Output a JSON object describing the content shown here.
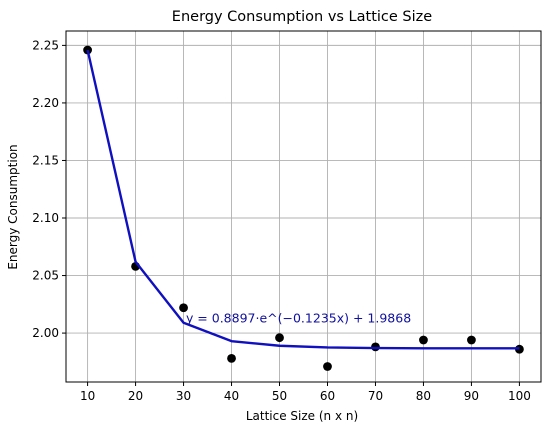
{
  "chart_data": {
    "type": "scatter",
    "title": "Energy Consumption vs Lattice Size",
    "xlabel": "Lattice Size (n x n)",
    "ylabel": "Energy Consumption",
    "xlim": [
      5.5,
      104.5
    ],
    "ylim": [
      1.9575,
      2.2625
    ],
    "grid": true,
    "x_ticks": [
      10,
      20,
      30,
      40,
      50,
      60,
      70,
      80,
      90,
      100
    ],
    "x_tick_labels": [
      "10",
      "20",
      "30",
      "40",
      "50",
      "60",
      "70",
      "80",
      "90",
      "100"
    ],
    "y_ticks": [
      2.0,
      2.05,
      2.1,
      2.15,
      2.2,
      2.25
    ],
    "y_tick_labels": [
      "2.00",
      "2.05",
      "2.10",
      "2.15",
      "2.20",
      "2.25"
    ],
    "series": [
      {
        "kind": "scatter",
        "color": "#000000",
        "x": [
          10,
          20,
          30,
          40,
          50,
          60,
          70,
          80,
          90,
          100
        ],
        "y": [
          2.246,
          2.058,
          2.022,
          1.978,
          1.996,
          1.971,
          1.988,
          1.994,
          1.994,
          1.986
        ]
      },
      {
        "kind": "line",
        "color": "#1010c0",
        "x": [
          10,
          20,
          30,
          40,
          50,
          60,
          70,
          80,
          90,
          100
        ],
        "y": [
          2.246,
          2.062,
          2.009,
          1.993,
          1.989,
          1.9875,
          1.987,
          1.9868,
          1.9868,
          1.9868
        ]
      }
    ],
    "annotations": [
      {
        "text": "y = 0.8897·e^(−0.1235x) + 1.9868",
        "x": 30.5,
        "y": 2.0125,
        "color": "#1010a0"
      }
    ]
  }
}
